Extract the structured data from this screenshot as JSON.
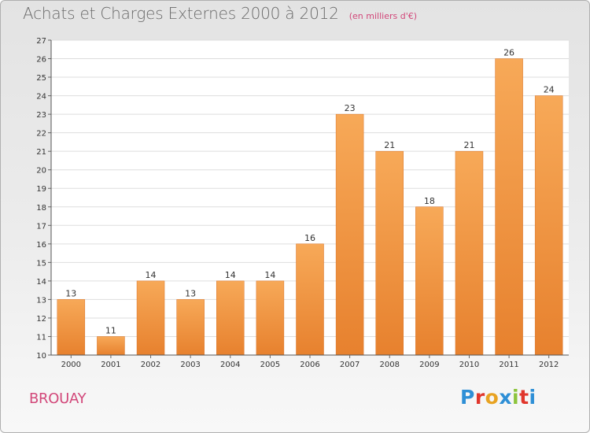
{
  "header": {
    "title": "Achats et Charges Externes 2000 à 2012",
    "unit": "(en milliers d'€)"
  },
  "footer": {
    "place": "BROUAY",
    "logo_letters": [
      "P",
      "r",
      "o",
      "x",
      "i",
      "t",
      "i"
    ],
    "logo_colors": [
      "#2e8fd6",
      "#e0362c",
      "#e8a322",
      "#2e8fd6",
      "#8cc43c",
      "#e0362c",
      "#2e8fd6"
    ]
  },
  "colors": {
    "bar_light": "#f7a958",
    "bar_dark": "#e7812e",
    "place": "#d2487a"
  },
  "chart_data": {
    "type": "bar",
    "title": "Achats et Charges Externes 2000 à 2012",
    "subtitle": "(en milliers d'€)",
    "categories": [
      "2000",
      "2001",
      "2002",
      "2003",
      "2004",
      "2005",
      "2006",
      "2007",
      "2008",
      "2009",
      "2010",
      "2011",
      "2012"
    ],
    "values": [
      13,
      11,
      14,
      13,
      14,
      14,
      16,
      23,
      21,
      18,
      21,
      26,
      24
    ],
    "ylim": [
      10,
      27
    ],
    "yticks": [
      10,
      11,
      12,
      13,
      14,
      15,
      16,
      17,
      18,
      19,
      20,
      21,
      22,
      23,
      24,
      25,
      26,
      27
    ],
    "grid": true
  }
}
